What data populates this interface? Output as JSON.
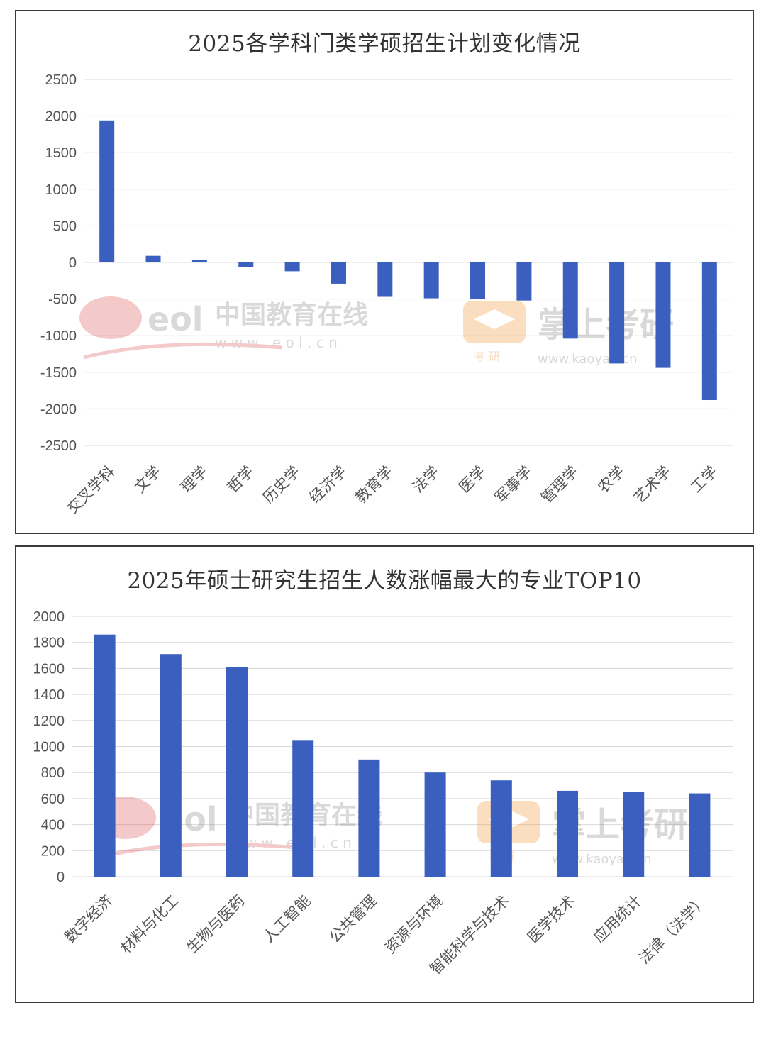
{
  "colors": {
    "bar": "#3a5fbf",
    "grid": "#d9d9d9",
    "text": "#555555"
  },
  "watermark": {
    "eol_logo": "eol",
    "eol_name": "中国教育在线",
    "eol_url": "w w w . e o l . c n",
    "zs_name": "掌上考研",
    "zs_small": "考 研",
    "zs_url": "www.kaoyan.cn"
  },
  "chart_data": [
    {
      "type": "bar",
      "title": "2025各学科门类学硕招生计划变化情况",
      "categories": [
        "交叉学科",
        "文学",
        "理学",
        "哲学",
        "历史学",
        "经济学",
        "教育学",
        "法学",
        "医学",
        "军事学",
        "管理学",
        "农学",
        "艺术学",
        "工学"
      ],
      "values": [
        1940,
        90,
        30,
        -60,
        -120,
        -290,
        -470,
        -490,
        -500,
        -520,
        -1040,
        -1380,
        -1440,
        -1880
      ],
      "ylim": [
        -2500,
        2500
      ],
      "yticks": [
        2500,
        2000,
        1500,
        1000,
        500,
        0,
        -500,
        -1000,
        -1500,
        -2000,
        -2500
      ],
      "grid": true,
      "xlabel": "",
      "ylabel": ""
    },
    {
      "type": "bar",
      "title": "2025年硕士研究生招生人数涨幅最大的专业TOP10",
      "categories": [
        "数字经济",
        "材料与化工",
        "生物与医药",
        "人工智能",
        "公共管理",
        "资源与环境",
        "智能科学与技术",
        "医学技术",
        "应用统计",
        "法律（法学）"
      ],
      "values": [
        1860,
        1710,
        1610,
        1050,
        900,
        800,
        740,
        660,
        650,
        640
      ],
      "ylim": [
        0,
        2000
      ],
      "yticks": [
        2000,
        1800,
        1600,
        1400,
        1200,
        1000,
        800,
        600,
        400,
        200,
        0
      ],
      "grid": true,
      "xlabel": "",
      "ylabel": ""
    }
  ]
}
